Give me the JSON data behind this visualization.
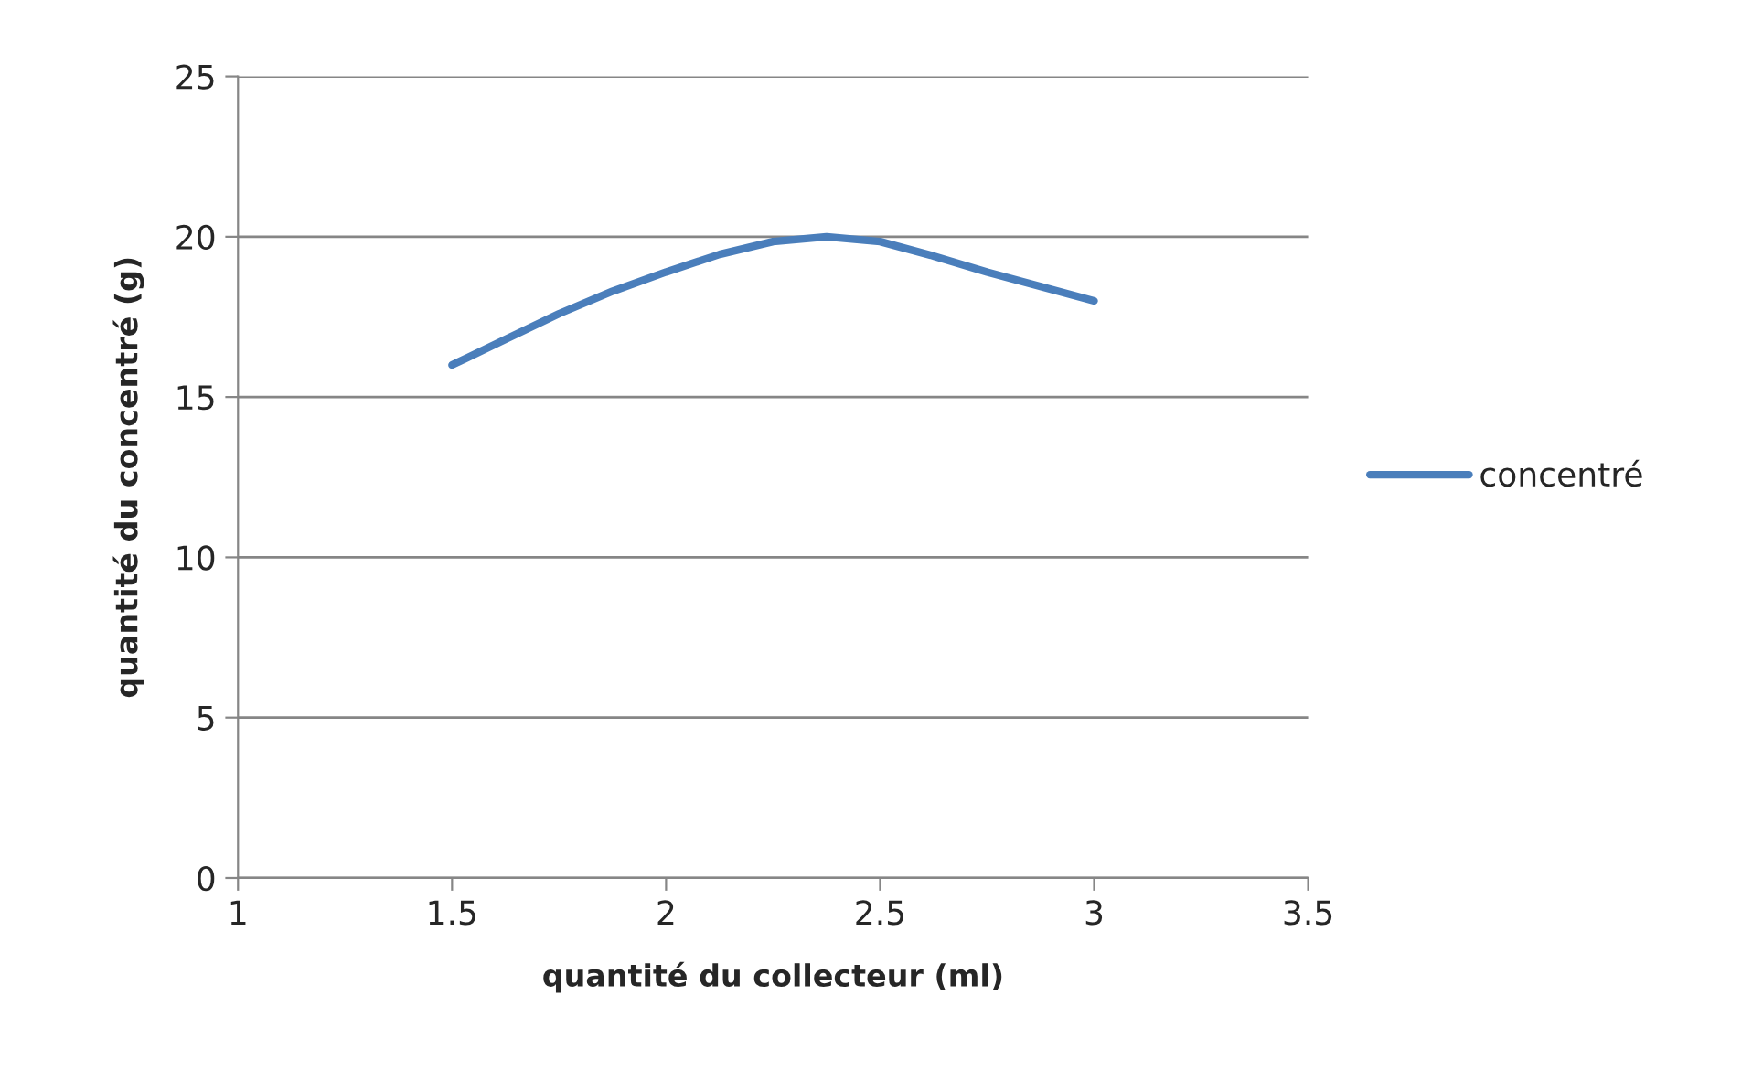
{
  "chart_data": {
    "type": "line",
    "xlabel": "quantité du collecteur (ml)",
    "ylabel": "quantité du concentré (g)",
    "x": [
      1.5,
      1.625,
      1.75,
      1.875,
      2,
      2.125,
      2.25,
      2.375,
      2.5,
      2.625,
      2.75,
      2.875,
      3
    ],
    "series": [
      {
        "name": "concentré",
        "color": "#4a7ebb",
        "values": [
          16,
          16.8,
          17.6,
          18.3,
          18.9,
          19.45,
          19.85,
          20,
          19.85,
          19.4,
          18.9,
          18.45,
          18
        ]
      }
    ],
    "xlim": [
      1,
      3.5
    ],
    "xticks": [
      1,
      1.5,
      2,
      2.5,
      3,
      3.5
    ],
    "ylim": [
      0,
      25
    ],
    "yticks": [
      0,
      5,
      10,
      15,
      20,
      25
    ],
    "grid": "y",
    "legend": "right",
    "marker": "none",
    "line_style": "solid"
  }
}
